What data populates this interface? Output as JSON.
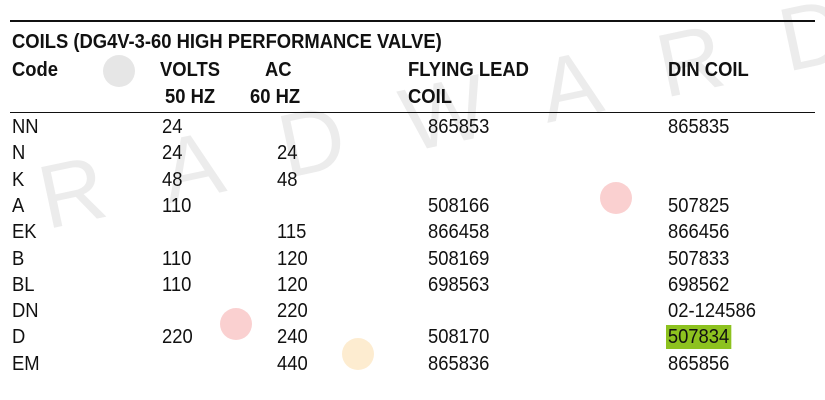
{
  "title": "COILS (DG4V-3-60 HIGH PERFORMANCE VALVE)",
  "watermark": "RADWARD",
  "header": {
    "row1": [
      "Code",
      "VOLTS",
      "AC",
      "FLYING LEAD",
      "DIN COIL"
    ],
    "row2": [
      "50 HZ",
      "60 HZ",
      "COIL"
    ]
  },
  "table": {
    "rows": [
      [
        "NN",
        "24",
        null,
        "865853",
        "865835"
      ],
      [
        "N",
        "24",
        "24",
        null,
        null
      ],
      [
        "K",
        "48",
        "48",
        null,
        null
      ],
      [
        "A",
        "110",
        null,
        "508166",
        "507825"
      ],
      [
        "EK",
        null,
        "115",
        "866458",
        "866456"
      ],
      [
        "B",
        "110",
        "120",
        "508169",
        "507833"
      ],
      [
        "BL",
        "110",
        "120",
        "698563",
        "698562"
      ],
      [
        "DN",
        null,
        "220",
        null,
        "02-124586"
      ],
      [
        "D",
        "220",
        "240",
        "508170",
        "507834"
      ],
      [
        "EM",
        null,
        "440",
        "865836",
        "865856"
      ]
    ]
  }
}
